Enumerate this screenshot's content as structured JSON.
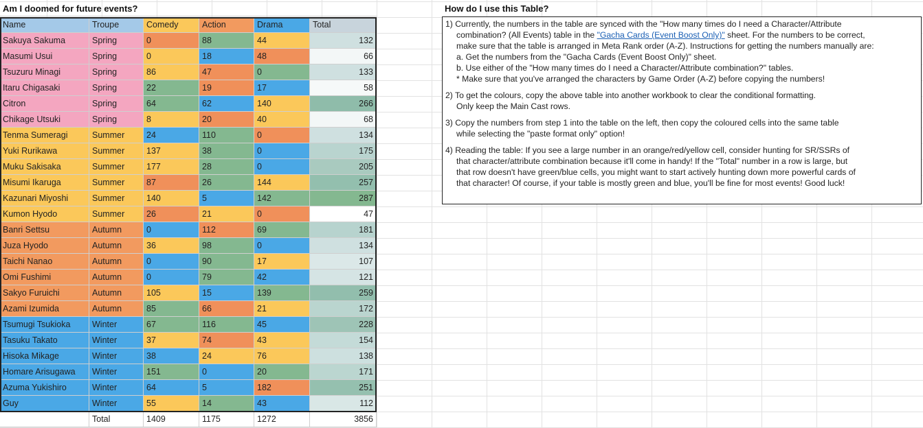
{
  "sheet": {
    "title": "Am I doomed for future events?",
    "columns": [
      "Name",
      "Troupe",
      "Comedy",
      "Action",
      "Drama",
      "Total"
    ],
    "troupe_colors": {
      "Spring": "#f4a6c0",
      "Summer": "#fbc85a",
      "Autumn": "#f29a5f",
      "Winter": "#4aa8e6"
    },
    "header_colors": {
      "Name": "#a4c9e8",
      "Troupe": "#a4c9e8",
      "Comedy": "#fbc85a",
      "Action": "#f29a5f",
      "Drama": "#4aa8e6",
      "Total": "#c8d4dc"
    },
    "value_colors": {
      "red": "#f0905a",
      "yellow": "#fbc85a",
      "green": "#84b890",
      "blue": "#4aa8e6"
    },
    "rows": [
      {
        "name": "Sakuya Sakuma",
        "troupe": "Spring",
        "comedy": "0",
        "action": "88",
        "drama": "44",
        "total": "132",
        "c": [
          "red",
          "green",
          "yellow"
        ],
        "t": "#cfe0e0"
      },
      {
        "name": "Masumi Usui",
        "troupe": "Spring",
        "comedy": "0",
        "action": "18",
        "drama": "48",
        "total": "66",
        "c": [
          "yellow",
          "blue",
          "red"
        ],
        "t": "#f3f7f7"
      },
      {
        "name": "Tsuzuru Minagi",
        "troupe": "Spring",
        "comedy": "86",
        "action": "47",
        "drama": "0",
        "total": "133",
        "c": [
          "yellow",
          "red",
          "green"
        ],
        "t": "#cfe0e0"
      },
      {
        "name": "Itaru Chigasaki",
        "troupe": "Spring",
        "comedy": "22",
        "action": "19",
        "drama": "17",
        "total": "58",
        "c": [
          "green",
          "red",
          "blue"
        ],
        "t": "#f6f9f9"
      },
      {
        "name": "Citron",
        "troupe": "Spring",
        "comedy": "64",
        "action": "62",
        "drama": "140",
        "total": "266",
        "c": [
          "green",
          "blue",
          "yellow"
        ],
        "t": "#8fbcaa"
      },
      {
        "name": "Chikage Utsuki",
        "troupe": "Spring",
        "comedy": "8",
        "action": "20",
        "drama": "40",
        "total": "68",
        "c": [
          "yellow",
          "red",
          "yellow"
        ],
        "t": "#f3f7f7"
      },
      {
        "name": "Tenma Sumeragi",
        "troupe": "Summer",
        "comedy": "24",
        "action": "110",
        "drama": "0",
        "total": "134",
        "c": [
          "blue",
          "green",
          "red"
        ],
        "t": "#cfe0e0"
      },
      {
        "name": "Yuki Rurikawa",
        "troupe": "Summer",
        "comedy": "137",
        "action": "38",
        "drama": "0",
        "total": "175",
        "c": [
          "yellow",
          "green",
          "blue"
        ],
        "t": "#b9d4cf"
      },
      {
        "name": "Muku Sakisaka",
        "troupe": "Summer",
        "comedy": "177",
        "action": "28",
        "drama": "0",
        "total": "205",
        "c": [
          "yellow",
          "green",
          "blue"
        ],
        "t": "#a9cabf"
      },
      {
        "name": "Misumi Ikaruga",
        "troupe": "Summer",
        "comedy": "87",
        "action": "26",
        "drama": "144",
        "total": "257",
        "c": [
          "red",
          "green",
          "yellow"
        ],
        "t": "#93bfae"
      },
      {
        "name": "Kazunari Miyoshi",
        "troupe": "Summer",
        "comedy": "140",
        "action": "5",
        "drama": "142",
        "total": "287",
        "c": [
          "yellow",
          "blue",
          "green"
        ],
        "t": "#84b890"
      },
      {
        "name": "Kumon Hyodo",
        "troupe": "Summer",
        "comedy": "26",
        "action": "21",
        "drama": "0",
        "total": "47",
        "c": [
          "red",
          "yellow",
          "red"
        ],
        "t": "#ffffff"
      },
      {
        "name": "Banri Settsu",
        "troupe": "Autumn",
        "comedy": "0",
        "action": "112",
        "drama": "69",
        "total": "181",
        "c": [
          "blue",
          "red",
          "green"
        ],
        "t": "#b7d3ce"
      },
      {
        "name": "Juza Hyodo",
        "troupe": "Autumn",
        "comedy": "36",
        "action": "98",
        "drama": "0",
        "total": "134",
        "c": [
          "yellow",
          "green",
          "blue"
        ],
        "t": "#cfe0e0"
      },
      {
        "name": "Taichi Nanao",
        "troupe": "Autumn",
        "comedy": "0",
        "action": "90",
        "drama": "17",
        "total": "107",
        "c": [
          "blue",
          "green",
          "yellow"
        ],
        "t": "#dbe8e8"
      },
      {
        "name": "Omi Fushimi",
        "troupe": "Autumn",
        "comedy": "0",
        "action": "79",
        "drama": "42",
        "total": "121",
        "c": [
          "blue",
          "green",
          "blue"
        ],
        "t": "#d5e4e4"
      },
      {
        "name": "Sakyo Furuichi",
        "troupe": "Autumn",
        "comedy": "105",
        "action": "15",
        "drama": "139",
        "total": "259",
        "c": [
          "yellow",
          "blue",
          "green"
        ],
        "t": "#92bead"
      },
      {
        "name": "Azami Izumida",
        "troupe": "Autumn",
        "comedy": "85",
        "action": "66",
        "drama": "21",
        "total": "172",
        "c": [
          "green",
          "red",
          "yellow"
        ],
        "t": "#bad5cf"
      },
      {
        "name": "Tsumugi Tsukioka",
        "troupe": "Winter",
        "comedy": "67",
        "action": "116",
        "drama": "45",
        "total": "228",
        "c": [
          "green",
          "green",
          "blue"
        ],
        "t": "#9ec4b6"
      },
      {
        "name": "Tasuku Takato",
        "troupe": "Winter",
        "comedy": "37",
        "action": "74",
        "drama": "43",
        "total": "154",
        "c": [
          "yellow",
          "red",
          "yellow"
        ],
        "t": "#c4dbd8"
      },
      {
        "name": "Hisoka Mikage",
        "troupe": "Winter",
        "comedy": "38",
        "action": "24",
        "drama": "76",
        "total": "138",
        "c": [
          "blue",
          "yellow",
          "yellow"
        ],
        "t": "#cde0df"
      },
      {
        "name": "Homare Arisugawa",
        "troupe": "Winter",
        "comedy": "151",
        "action": "0",
        "drama": "20",
        "total": "171",
        "c": [
          "green",
          "blue",
          "green"
        ],
        "t": "#bbd6d0"
      },
      {
        "name": "Azuma Yukishiro",
        "troupe": "Winter",
        "comedy": "64",
        "action": "5",
        "drama": "182",
        "total": "251",
        "c": [
          "blue",
          "blue",
          "red"
        ],
        "t": "#95c0af"
      },
      {
        "name": "Guy",
        "troupe": "Winter",
        "comedy": "55",
        "action": "14",
        "drama": "43",
        "total": "112",
        "c": [
          "yellow",
          "green",
          "blue"
        ],
        "t": "#d9e7e6"
      }
    ],
    "totals": {
      "label": "Total",
      "comedy": "1409",
      "action": "1175",
      "drama": "1272",
      "total": "3856"
    }
  },
  "help": {
    "title": "How do I use this Table?",
    "step1_a": "1) Currently, the numbers in the table are synced with the \"How many times do I need a Character/Attribute",
    "step1_b": "combination? (All Events) table in the ",
    "step1_link": "\"Gacha Cards (Event Boost Only)\"",
    "step1_c": " sheet. For the numbers to be correct,",
    "step1_d": "make sure that the table is arranged in Meta Rank order (A-Z). Instructions for getting the numbers manually are:",
    "step1_e": "a. Get the numbers from the \"Gacha Cards (Event Boost Only)\" sheet.",
    "step1_f": "b. Use either of the \"How many times do I need a Character/Attribute combination?\" tables.",
    "step1_g": "* Make sure that you've arranged the characters by Game Order (A-Z) before copying the numbers!",
    "step2_a": "2) To get the colours, copy the above table into another workbook to clear the conditional formatting.",
    "step2_b": "Only keep the Main Cast rows.",
    "step3_a": "3) Copy the numbers from step 1 into the table on the left, then copy the coloured cells into the same table",
    "step3_b": "while selecting the \"paste format only\" option!",
    "step4_a": "4) Reading the table: If you see a large number in an orange/red/yellow cell, consider hunting for SR/SSRs of",
    "step4_b": "that character/attribute combination because it'll come in handy! If the \"Total\" number in a row is large, but",
    "step4_c": "that row doesn't have green/blue cells, you might want to start actively hunting down more powerful cards of",
    "step4_d": "that character! Of course, if your table is mostly green and blue, you'll be fine for most events! Good luck!"
  }
}
